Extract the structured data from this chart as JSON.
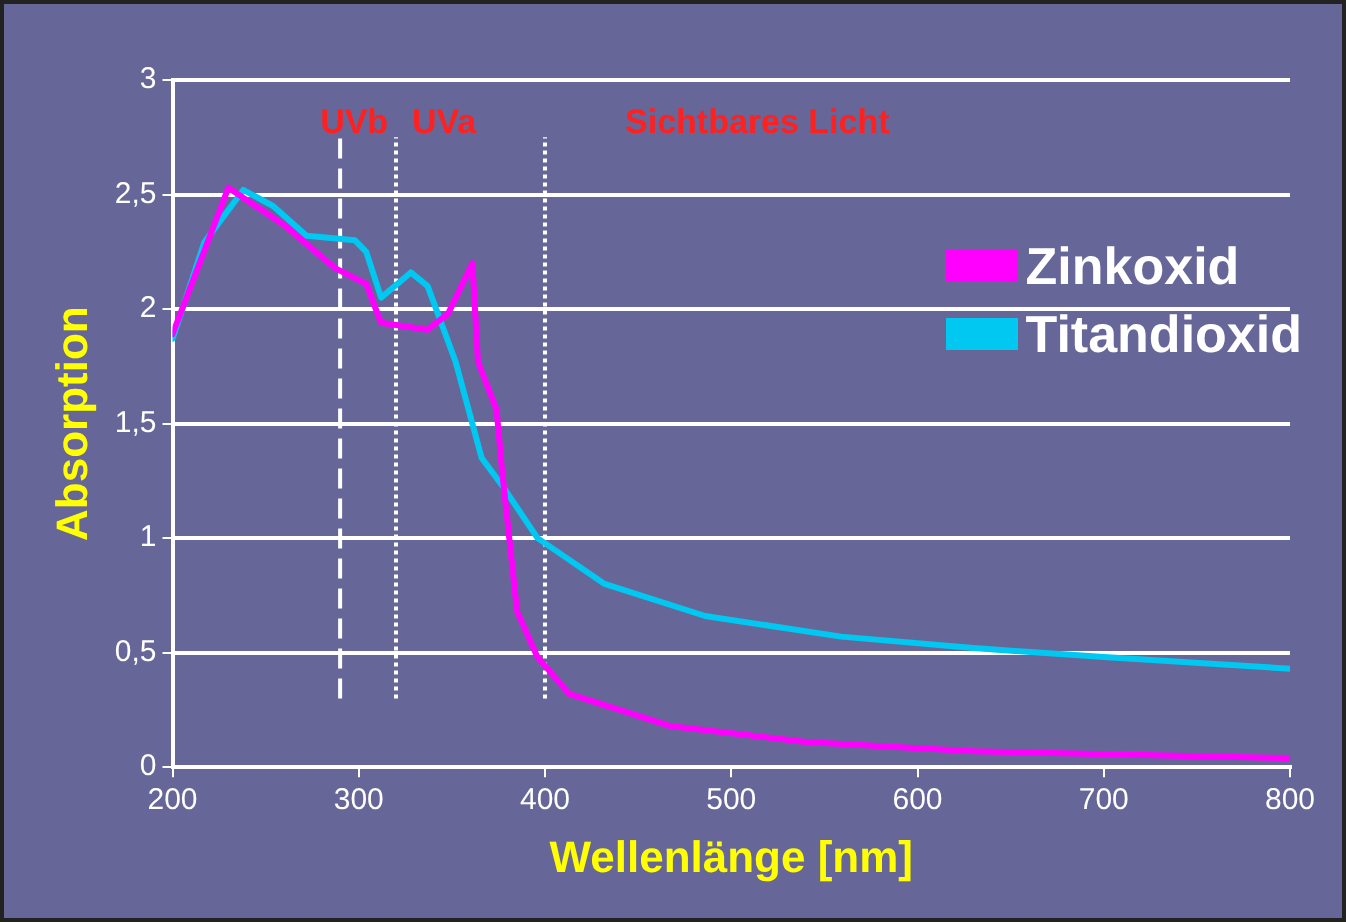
{
  "chart_data": {
    "type": "line",
    "xlabel": "Wellenlänge [nm]",
    "ylabel": "Absorption",
    "xlim": [
      200,
      800
    ],
    "xticks": [
      200,
      300,
      400,
      500,
      600,
      700,
      800
    ],
    "ylim": [
      0,
      3
    ],
    "yticks": [
      0,
      {
        "value": 0.5,
        "label": "0,5"
      },
      1,
      {
        "value": 1.5,
        "label": "1,5"
      },
      2,
      {
        "value": 2.5,
        "label": "2,5"
      },
      3
    ],
    "grid": "y",
    "legend": "right",
    "marker": "none",
    "line_style": "solid",
    "series": [
      {
        "name": "Zinkoxid",
        "color": "#ff00ff",
        "x": [
          200,
          230,
          261,
          287,
          304,
          312,
          337,
          348,
          361,
          364,
          374,
          377,
          385,
          396,
          413,
          467,
          540,
          630,
          739,
          800
        ],
        "values": [
          1.89,
          2.53,
          2.36,
          2.18,
          2.11,
          1.94,
          1.91,
          1.98,
          2.2,
          1.77,
          1.56,
          1.29,
          0.68,
          0.48,
          0.32,
          0.18,
          0.11,
          0.07,
          0.05,
          0.04
        ]
      },
      {
        "name": "Titandioxid",
        "color": "#00c8f0",
        "x": [
          200,
          217,
          238,
          254,
          272,
          298,
          304,
          312,
          328,
          337,
          352,
          366,
          377,
          396,
          432,
          486,
          559,
          630,
          702,
          800
        ],
        "values": [
          1.87,
          2.29,
          2.52,
          2.45,
          2.32,
          2.3,
          2.25,
          2.05,
          2.16,
          2.1,
          1.77,
          1.35,
          1.23,
          1.0,
          0.8,
          0.66,
          0.57,
          0.52,
          0.48,
          0.43
        ]
      }
    ],
    "ref_lines": [
      {
        "axis": "x",
        "value": 290,
        "color": "#ffffff",
        "line_style": "dashed"
      },
      {
        "axis": "x",
        "value": 320,
        "color": "#ffffff",
        "line_style": "dotted"
      },
      {
        "axis": "x",
        "value": 400,
        "color": "#ffffff",
        "line_style": "dotted"
      }
    ],
    "annotations": [
      "UVb",
      "UVa",
      "Sichtbares Licht"
    ]
  }
}
